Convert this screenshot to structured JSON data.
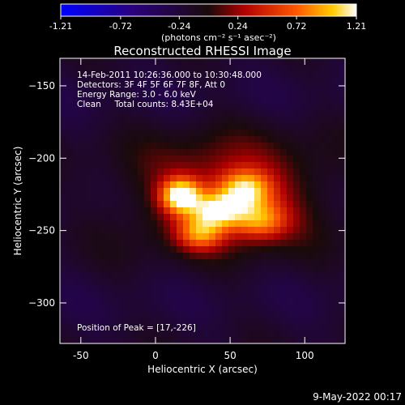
{
  "colorbar": {
    "ticks": [
      "-1.21",
      "-0.72",
      "-0.24",
      "0.24",
      "0.72",
      "1.21"
    ],
    "range": [
      -1.21,
      1.21
    ],
    "unit_label": "(photons cm⁻² s⁻¹ asec⁻²)"
  },
  "chart_data": {
    "type": "heatmap",
    "title": "Reconstructed RHESSI Image",
    "xlabel": "Heliocentric X (arcsec)",
    "ylabel": "Heliocentric Y (arcsec)",
    "xlim": [
      -64,
      127
    ],
    "ylim": [
      -328,
      -131
    ],
    "xticks": [
      -50,
      0,
      50,
      100
    ],
    "yticks": [
      -150,
      -200,
      -250,
      -300
    ],
    "annotations": [
      "14-Feb-2011 10:26:36.000 to 10:30:48.000",
      "Detectors: 3F 4F 5F 6F 7F 8F, Att 0",
      "Energy Range: 3.0 - 6.0 keV",
      "Clean     Total counts: 8.43E+04"
    ],
    "peak_label": "Position of Peak = [17,-226]",
    "peak": [
      17,
      -226
    ],
    "sources": [
      {
        "x": 17,
        "y": -226,
        "peak": 1.21,
        "sx": 9,
        "sy": 8
      },
      {
        "x": 42,
        "y": -236,
        "peak": 0.95,
        "sx": 12,
        "sy": 8
      },
      {
        "x": 60,
        "y": -222,
        "peak": 0.9,
        "sx": 12,
        "sy": 9
      },
      {
        "x": 70,
        "y": -243,
        "peak": 0.72,
        "sx": 13,
        "sy": 9
      },
      {
        "x": 30,
        "y": -252,
        "peak": 0.72,
        "sx": 11,
        "sy": 8
      },
      {
        "x": 48,
        "y": -225,
        "peak": 0.6,
        "sx": 45,
        "sy": 26
      }
    ]
  },
  "footer": {
    "date": "9-May-2022 00:17"
  }
}
